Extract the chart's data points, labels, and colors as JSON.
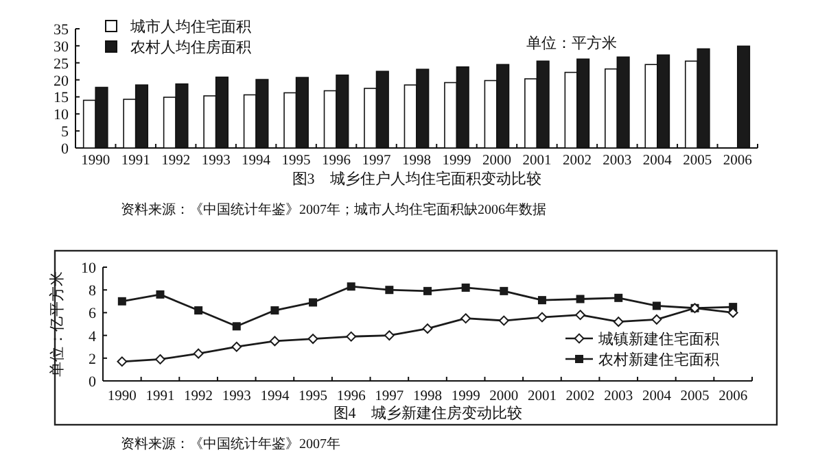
{
  "chart_data": [
    {
      "type": "bar",
      "title": "图3　城乡住户人均住宅面积变动比较",
      "categories": [
        "1990",
        "1991",
        "1992",
        "1993",
        "1994",
        "1995",
        "1996",
        "1997",
        "1998",
        "1999",
        "2000",
        "2001",
        "2002",
        "2003",
        "2004",
        "2005",
        "2006"
      ],
      "series": [
        {
          "name": "城市人均住宅面积",
          "color": "#ffffff",
          "values": [
            14,
            14.3,
            14.9,
            15.3,
            15.6,
            16.2,
            16.8,
            17.5,
            18.5,
            19.2,
            19.8,
            20.3,
            22.2,
            23.2,
            24.5,
            25.5,
            null
          ]
        },
        {
          "name": "农村人均住房面积",
          "color": "#1a1a1a",
          "values": [
            17.8,
            18.5,
            18.8,
            20.8,
            20.1,
            20.7,
            21.4,
            22.5,
            23.1,
            23.8,
            24.5,
            25.5,
            26.1,
            26.7,
            27.3,
            29.1,
            29.9
          ]
        }
      ],
      "ylim": [
        0,
        35
      ],
      "yticks": [
        0,
        5,
        10,
        15,
        20,
        25,
        30,
        35
      ],
      "grid": false,
      "legend": "top left",
      "annotations": [
        "单位：平方米",
        "资料来源：《中国统计年鉴》2007年；城市人均住宅面积缺2006年数据"
      ]
    },
    {
      "type": "line",
      "title": "图4　城乡新建住房变动比较",
      "ylabel": "单位：亿平方米",
      "categories": [
        "1990",
        "1991",
        "1992",
        "1993",
        "1994",
        "1995",
        "1996",
        "1997",
        "1998",
        "1999",
        "2000",
        "2001",
        "2002",
        "2003",
        "2004",
        "2005",
        "2006"
      ],
      "series": [
        {
          "name": "城镇新建住宅面积",
          "color": "#1a1a1a",
          "marker": "diamond",
          "values": [
            1.7,
            1.9,
            2.4,
            3.0,
            3.5,
            3.7,
            3.9,
            4.0,
            4.6,
            5.5,
            5.3,
            5.6,
            5.8,
            5.2,
            5.4,
            6.4,
            6.0
          ]
        },
        {
          "name": "农村新建住宅面积",
          "color": "#1a1a1a",
          "marker": "square",
          "values": [
            7.0,
            7.6,
            6.2,
            4.8,
            6.2,
            6.9,
            8.3,
            8.0,
            7.9,
            8.2,
            7.9,
            7.1,
            7.2,
            7.3,
            6.6,
            6.4,
            6.5
          ]
        }
      ],
      "ylim": [
        0,
        10
      ],
      "yticks": [
        0,
        2,
        4,
        6,
        8,
        10
      ],
      "grid": false,
      "legend": "right",
      "line_style": "solid",
      "annotations": [
        "资料来源：《中国统计年鉴》2007年"
      ]
    }
  ]
}
